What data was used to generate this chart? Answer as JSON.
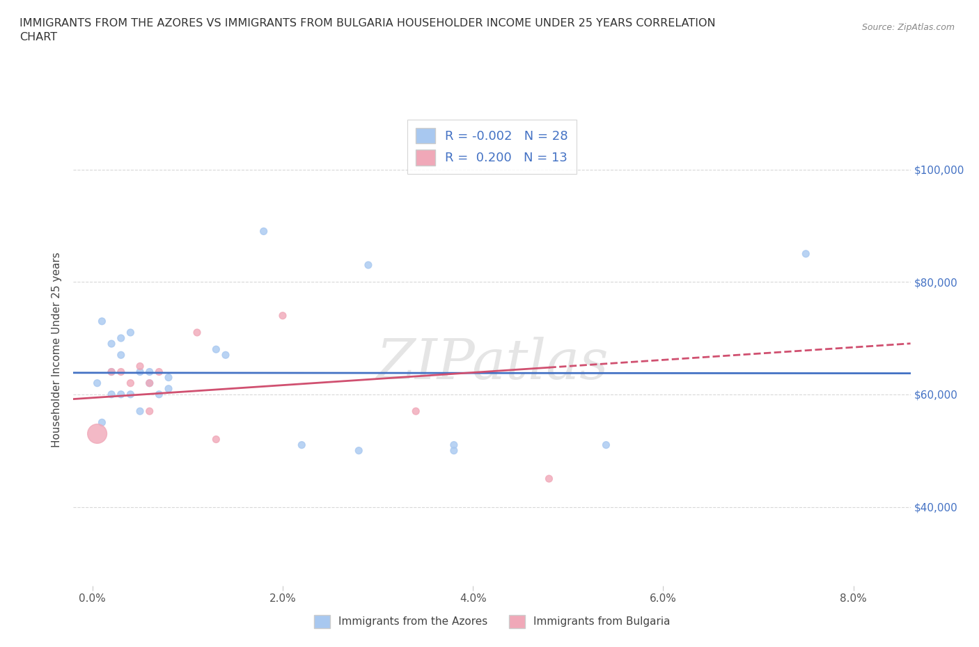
{
  "title_line1": "IMMIGRANTS FROM THE AZORES VS IMMIGRANTS FROM BULGARIA HOUSEHOLDER INCOME UNDER 25 YEARS CORRELATION",
  "title_line2": "CHART",
  "source_text": "Source: ZipAtlas.com",
  "ylabel": "Householder Income Under 25 years",
  "xlabel_ticks": [
    "0.0%",
    "2.0%",
    "4.0%",
    "6.0%",
    "8.0%"
  ],
  "xlabel_vals": [
    0.0,
    0.02,
    0.04,
    0.06,
    0.08
  ],
  "ytick_labels": [
    "$40,000",
    "$60,000",
    "$80,000",
    "$100,000"
  ],
  "ytick_vals": [
    40000,
    60000,
    80000,
    100000
  ],
  "xlim": [
    -0.002,
    0.086
  ],
  "ylim": [
    26000,
    110000
  ],
  "azores_color": "#a8c8f0",
  "bulgaria_color": "#f0a8b8",
  "azores_line_color": "#4472c4",
  "bulgaria_line_color": "#d05070",
  "R_azores": -0.002,
  "N_azores": 28,
  "R_bulgaria": 0.2,
  "N_bulgaria": 13,
  "azores_x": [
    0.0005,
    0.001,
    0.002,
    0.002,
    0.002,
    0.003,
    0.003,
    0.003,
    0.004,
    0.004,
    0.005,
    0.005,
    0.006,
    0.006,
    0.007,
    0.008,
    0.008,
    0.013,
    0.014,
    0.018,
    0.022,
    0.028,
    0.029,
    0.038,
    0.038,
    0.054,
    0.075,
    0.001
  ],
  "azores_y": [
    62000,
    73000,
    69000,
    64000,
    60000,
    70000,
    67000,
    60000,
    71000,
    60000,
    64000,
    57000,
    64000,
    62000,
    60000,
    63000,
    61000,
    68000,
    67000,
    89000,
    51000,
    50000,
    83000,
    50000,
    51000,
    51000,
    85000,
    55000
  ],
  "azores_size": [
    50,
    50,
    50,
    50,
    50,
    50,
    50,
    50,
    50,
    50,
    50,
    50,
    50,
    50,
    50,
    50,
    50,
    50,
    50,
    50,
    50,
    50,
    50,
    50,
    50,
    50,
    50,
    50
  ],
  "bulgaria_x": [
    0.0005,
    0.002,
    0.003,
    0.004,
    0.005,
    0.006,
    0.006,
    0.007,
    0.011,
    0.013,
    0.02,
    0.034,
    0.048
  ],
  "bulgaria_y": [
    53000,
    64000,
    64000,
    62000,
    65000,
    62000,
    57000,
    64000,
    71000,
    52000,
    74000,
    57000,
    45000
  ],
  "bulgaria_size": [
    400,
    50,
    50,
    50,
    50,
    50,
    50,
    50,
    50,
    50,
    50,
    50,
    50
  ],
  "watermark": "ZIPatlas",
  "background_color": "#ffffff",
  "grid_color": "#d8d8d8"
}
